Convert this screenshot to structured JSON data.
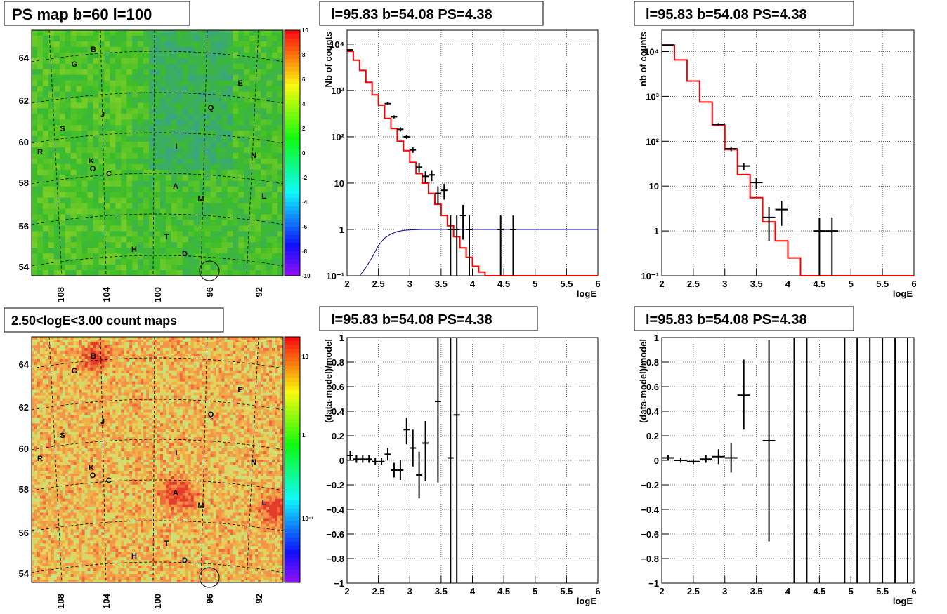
{
  "colors": {
    "data": "#000000",
    "model": "#ff0000",
    "ratio": "#0000aa",
    "frame": "#000000"
  },
  "maps": [
    {
      "title": "PS map b=60 l=100",
      "kind": "residual",
      "x_ticks": [
        "108",
        "104",
        "100",
        "96",
        "92"
      ],
      "y_ticks": [
        "64",
        "62",
        "60",
        "58",
        "56",
        "54"
      ],
      "colorbar_ticks": [
        "10",
        "8",
        "6",
        "4",
        "2",
        "0",
        "-2",
        "-4",
        "-6",
        "-8",
        "-10"
      ],
      "sources": [
        "B",
        "G",
        "E",
        "Q",
        "J",
        "S",
        "I",
        "R",
        "N",
        "K",
        "O",
        "C",
        "A",
        "M",
        "L",
        "T",
        "H",
        "D"
      ]
    },
    {
      "title": "2.50<logE<3.00 count maps",
      "kind": "counts",
      "x_ticks": [
        "108",
        "104",
        "100",
        "96",
        "92"
      ],
      "y_ticks": [
        "64",
        "62",
        "60",
        "58",
        "56",
        "54"
      ],
      "colorbar_ticks": [
        "10",
        "1",
        "10⁻¹"
      ],
      "sources": [
        "B",
        "G",
        "E",
        "Q",
        "J",
        "S",
        "I",
        "R",
        "N",
        "K",
        "O",
        "C",
        "A",
        "M",
        "L",
        "T",
        "H",
        "D"
      ]
    }
  ],
  "chart_data": [
    {
      "type": "line",
      "title": "l=95.83 b=54.08 PS=4.38",
      "xlabel": "logE",
      "ylabel": "Nb of counts",
      "yscale": "log",
      "xlim": [
        2,
        6
      ],
      "ylim": [
        0.1,
        20000
      ],
      "grid": true,
      "x_ticks": [
        "2",
        "2.5",
        "3",
        "3.5",
        "4",
        "4.5",
        "5",
        "5.5",
        "6"
      ],
      "y_ticks": [
        "10⁻¹",
        "1",
        "10",
        "10²",
        "10³",
        "10⁴"
      ],
      "model_step": [
        {
          "x0": 2.0,
          "x1": 2.1,
          "y": 7000
        },
        {
          "x0": 2.1,
          "x1": 2.2,
          "y": 4500
        },
        {
          "x0": 2.2,
          "x1": 2.3,
          "y": 2700
        },
        {
          "x0": 2.3,
          "x1": 2.4,
          "y": 1500
        },
        {
          "x0": 2.4,
          "x1": 2.5,
          "y": 800
        },
        {
          "x0": 2.5,
          "x1": 2.6,
          "y": 480
        },
        {
          "x0": 2.6,
          "x1": 2.7,
          "y": 250
        },
        {
          "x0": 2.7,
          "x1": 2.8,
          "y": 150
        },
        {
          "x0": 2.8,
          "x1": 2.9,
          "y": 80
        },
        {
          "x0": 2.9,
          "x1": 3.0,
          "y": 50
        },
        {
          "x0": 3.0,
          "x1": 3.1,
          "y": 28
        },
        {
          "x0": 3.1,
          "x1": 3.2,
          "y": 16
        },
        {
          "x0": 3.2,
          "x1": 3.3,
          "y": 10
        },
        {
          "x0": 3.3,
          "x1": 3.4,
          "y": 6
        },
        {
          "x0": 3.4,
          "x1": 3.5,
          "y": 3.5
        },
        {
          "x0": 3.5,
          "x1": 3.6,
          "y": 2
        },
        {
          "x0": 3.6,
          "x1": 3.7,
          "y": 1.2
        },
        {
          "x0": 3.7,
          "x1": 3.8,
          "y": 0.7
        },
        {
          "x0": 3.8,
          "x1": 3.9,
          "y": 0.4
        },
        {
          "x0": 3.9,
          "x1": 4.0,
          "y": 0.25
        },
        {
          "x0": 4.0,
          "x1": 4.1,
          "y": 0.16
        },
        {
          "x0": 4.1,
          "x1": 4.2,
          "y": 0.12
        },
        {
          "x0": 4.2,
          "x1": 6.0,
          "y": 0.1
        }
      ],
      "ratio_curve": [
        {
          "x": 2.2,
          "y": 0.1
        },
        {
          "x": 2.3,
          "y": 0.15
        },
        {
          "x": 2.4,
          "y": 0.25
        },
        {
          "x": 2.5,
          "y": 0.45
        },
        {
          "x": 2.6,
          "y": 0.65
        },
        {
          "x": 2.7,
          "y": 0.8
        },
        {
          "x": 2.8,
          "y": 0.9
        },
        {
          "x": 2.9,
          "y": 0.95
        },
        {
          "x": 3.0,
          "y": 0.98
        },
        {
          "x": 3.2,
          "y": 1.0
        },
        {
          "x": 6.0,
          "y": 1.0
        }
      ],
      "points": [
        {
          "x": 2.05,
          "y": 7500,
          "hw": 0.05,
          "lo": 7300,
          "hi": 7700
        },
        {
          "x": 2.65,
          "y": 520,
          "hw": 0.05,
          "lo": 490,
          "hi": 550
        },
        {
          "x": 2.75,
          "y": 270,
          "hw": 0.05,
          "lo": 250,
          "hi": 290
        },
        {
          "x": 2.85,
          "y": 145,
          "hw": 0.05,
          "lo": 130,
          "hi": 160
        },
        {
          "x": 2.95,
          "y": 100,
          "hw": 0.05,
          "lo": 90,
          "hi": 110
        },
        {
          "x": 3.05,
          "y": 52,
          "hw": 0.05,
          "lo": 45,
          "hi": 59
        },
        {
          "x": 3.15,
          "y": 22,
          "hw": 0.05,
          "lo": 17,
          "hi": 27
        },
        {
          "x": 3.25,
          "y": 14,
          "hw": 0.05,
          "lo": 10,
          "hi": 18
        },
        {
          "x": 3.35,
          "y": 15,
          "hw": 0.05,
          "lo": 11,
          "hi": 19
        },
        {
          "x": 3.45,
          "y": 6,
          "hw": 0.05,
          "lo": 3.5,
          "hi": 8.5
        },
        {
          "x": 3.55,
          "y": 7,
          "hw": 0.05,
          "lo": 4.4,
          "hi": 9.6
        },
        {
          "x": 3.65,
          "y": 1,
          "hw": 0.05,
          "lo": 0.1,
          "hi": 2
        },
        {
          "x": 3.75,
          "y": 1,
          "hw": 0.05,
          "lo": 0.1,
          "hi": 2
        },
        {
          "x": 3.85,
          "y": 2,
          "hw": 0.05,
          "lo": 0.6,
          "hi": 3.4
        },
        {
          "x": 3.95,
          "y": 1,
          "hw": 0.05,
          "lo": 0.1,
          "hi": 2
        },
        {
          "x": 4.45,
          "y": 1,
          "hw": 0.05,
          "lo": 0.1,
          "hi": 2
        },
        {
          "x": 4.65,
          "y": 1,
          "hw": 0.05,
          "lo": 0.1,
          "hi": 2
        }
      ]
    },
    {
      "type": "line",
      "title": "l=95.83 b=54.08 PS=4.38",
      "xlabel": "logE",
      "ylabel": "nb of counts",
      "yscale": "log",
      "xlim": [
        2,
        6
      ],
      "ylim": [
        0.1,
        30000
      ],
      "grid": true,
      "x_ticks": [
        "2",
        "2.5",
        "3",
        "3.5",
        "4",
        "4.5",
        "5",
        "5.5",
        "6"
      ],
      "y_ticks": [
        "10⁻¹",
        "1",
        "10",
        "10²",
        "10³",
        "10⁴"
      ],
      "model_step": [
        {
          "x0": 2.0,
          "x1": 2.2,
          "y": 14000
        },
        {
          "x0": 2.2,
          "x1": 2.4,
          "y": 6500
        },
        {
          "x0": 2.4,
          "x1": 2.6,
          "y": 2200
        },
        {
          "x0": 2.6,
          "x1": 2.8,
          "y": 750
        },
        {
          "x0": 2.8,
          "x1": 3.0,
          "y": 230
        },
        {
          "x0": 3.0,
          "x1": 3.2,
          "y": 65
        },
        {
          "x0": 3.2,
          "x1": 3.4,
          "y": 18
        },
        {
          "x0": 3.4,
          "x1": 3.6,
          "y": 5.5
        },
        {
          "x0": 3.6,
          "x1": 3.8,
          "y": 1.6
        },
        {
          "x0": 3.8,
          "x1": 4.0,
          "y": 0.6
        },
        {
          "x0": 4.0,
          "x1": 4.2,
          "y": 0.25
        },
        {
          "x0": 4.2,
          "x1": 6.0,
          "y": 0.1
        }
      ],
      "ratio_curve": [],
      "points": [
        {
          "x": 2.1,
          "y": 14000,
          "hw": 0.1,
          "lo": 13800,
          "hi": 14200
        },
        {
          "x": 2.9,
          "y": 240,
          "hw": 0.1,
          "lo": 225,
          "hi": 255
        },
        {
          "x": 3.1,
          "y": 68,
          "hw": 0.1,
          "lo": 60,
          "hi": 76
        },
        {
          "x": 3.3,
          "y": 28,
          "hw": 0.1,
          "lo": 23,
          "hi": 33
        },
        {
          "x": 3.5,
          "y": 12,
          "hw": 0.1,
          "lo": 8.5,
          "hi": 15.5
        },
        {
          "x": 3.7,
          "y": 2,
          "hw": 0.1,
          "lo": 0.6,
          "hi": 3.4
        },
        {
          "x": 3.9,
          "y": 3,
          "hw": 0.1,
          "lo": 1.3,
          "hi": 4.7
        },
        {
          "x": 4.5,
          "y": 1,
          "hw": 0.1,
          "lo": 0.1,
          "hi": 2
        },
        {
          "x": 4.7,
          "y": 1,
          "hw": 0.1,
          "lo": 0.1,
          "hi": 2
        }
      ]
    },
    {
      "type": "scatter",
      "title": "l=95.83 b=54.08 PS=4.38",
      "xlabel": "logE",
      "ylabel": "(data-model)/model",
      "yscale": "linear",
      "xlim": [
        2,
        6
      ],
      "ylim": [
        -1,
        1
      ],
      "grid": true,
      "x_ticks": [
        "2",
        "2.5",
        "3",
        "3.5",
        "4",
        "4.5",
        "5",
        "5.5",
        "6"
      ],
      "y_ticks": [
        "−1",
        "−0.8",
        "−0.6",
        "−0.4",
        "−0.2",
        "0",
        "0.2",
        "0.4",
        "0.6",
        "0.8",
        "1"
      ],
      "points": [
        {
          "x": 2.05,
          "y": 0.04,
          "hw": 0.05,
          "lo": 0.0,
          "hi": 0.08
        },
        {
          "x": 2.15,
          "y": 0.01,
          "hw": 0.05,
          "lo": -0.02,
          "hi": 0.04
        },
        {
          "x": 2.25,
          "y": 0.01,
          "hw": 0.05,
          "lo": -0.02,
          "hi": 0.04
        },
        {
          "x": 2.35,
          "y": 0.01,
          "hw": 0.05,
          "lo": -0.02,
          "hi": 0.04
        },
        {
          "x": 2.45,
          "y": -0.01,
          "hw": 0.05,
          "lo": -0.04,
          "hi": 0.02
        },
        {
          "x": 2.55,
          "y": -0.01,
          "hw": 0.05,
          "lo": -0.04,
          "hi": 0.02
        },
        {
          "x": 2.65,
          "y": 0.05,
          "hw": 0.05,
          "lo": 0.0,
          "hi": 0.1
        },
        {
          "x": 2.75,
          "y": -0.08,
          "hw": 0.05,
          "lo": -0.14,
          "hi": -0.02
        },
        {
          "x": 2.85,
          "y": -0.08,
          "hw": 0.05,
          "lo": -0.16,
          "hi": 0.0
        },
        {
          "x": 2.95,
          "y": 0.25,
          "hw": 0.05,
          "lo": 0.13,
          "hi": 0.35
        },
        {
          "x": 3.05,
          "y": 0.1,
          "hw": 0.05,
          "lo": -0.05,
          "hi": 0.25
        },
        {
          "x": 3.15,
          "y": -0.12,
          "hw": 0.05,
          "lo": -0.31,
          "hi": 0.07
        },
        {
          "x": 3.25,
          "y": 0.14,
          "hw": 0.05,
          "lo": -0.17,
          "hi": 0.32
        },
        {
          "x": 3.45,
          "y": 0.48,
          "hw": 0.05,
          "lo": -0.18,
          "hi": 1.0
        },
        {
          "x": 3.65,
          "y": 0.02,
          "hw": 0.05,
          "lo": -1.0,
          "hi": 1.0
        },
        {
          "x": 3.75,
          "y": 0.37,
          "hw": 0.05,
          "lo": -1.0,
          "hi": 1.0
        }
      ]
    },
    {
      "type": "scatter",
      "title": "l=95.83 b=54.08 PS=4.38",
      "xlabel": "logE",
      "ylabel": "(data-model)/model",
      "yscale": "linear",
      "xlim": [
        2,
        6
      ],
      "ylim": [
        -1,
        1
      ],
      "grid": true,
      "x_ticks": [
        "2",
        "2.5",
        "3",
        "3.5",
        "4",
        "4.5",
        "5",
        "5.5",
        "6"
      ],
      "y_ticks": [
        "−1",
        "−0.8",
        "−0.6",
        "−0.4",
        "−0.2",
        "0",
        "0.2",
        "0.4",
        "0.6",
        "0.8",
        "1"
      ],
      "points": [
        {
          "x": 2.1,
          "y": 0.02,
          "hw": 0.1,
          "lo": 0.0,
          "hi": 0.04
        },
        {
          "x": 2.3,
          "y": 0.0,
          "hw": 0.1,
          "lo": -0.02,
          "hi": 0.02
        },
        {
          "x": 2.5,
          "y": -0.01,
          "hw": 0.1,
          "lo": -0.03,
          "hi": 0.01
        },
        {
          "x": 2.7,
          "y": 0.01,
          "hw": 0.1,
          "lo": -0.02,
          "hi": 0.04
        },
        {
          "x": 2.9,
          "y": 0.03,
          "hw": 0.1,
          "lo": -0.03,
          "hi": 0.09
        },
        {
          "x": 3.1,
          "y": 0.02,
          "hw": 0.1,
          "lo": -0.1,
          "hi": 0.14
        },
        {
          "x": 3.3,
          "y": 0.53,
          "hw": 0.1,
          "lo": 0.25,
          "hi": 0.82
        },
        {
          "x": 3.7,
          "y": 0.16,
          "hw": 0.1,
          "lo": -0.66,
          "hi": 0.98
        },
        {
          "x": 4.1,
          "y": 1.0,
          "hw": 0.0,
          "lo": -1.0,
          "hi": 1.0
        },
        {
          "x": 4.3,
          "y": 1.0,
          "hw": 0.0,
          "lo": -1.0,
          "hi": 1.0
        },
        {
          "x": 4.9,
          "y": 1.0,
          "hw": 0.0,
          "lo": -1.0,
          "hi": 1.0
        },
        {
          "x": 5.1,
          "y": 1.0,
          "hw": 0.0,
          "lo": -1.0,
          "hi": 1.0
        },
        {
          "x": 5.3,
          "y": 1.0,
          "hw": 0.0,
          "lo": -1.0,
          "hi": 1.0
        },
        {
          "x": 5.5,
          "y": 1.0,
          "hw": 0.0,
          "lo": -1.0,
          "hi": 1.0
        },
        {
          "x": 5.7,
          "y": 1.0,
          "hw": 0.0,
          "lo": -1.0,
          "hi": 1.0
        },
        {
          "x": 5.9,
          "y": 1.0,
          "hw": 0.0,
          "lo": -1.0,
          "hi": 1.0
        }
      ]
    }
  ]
}
